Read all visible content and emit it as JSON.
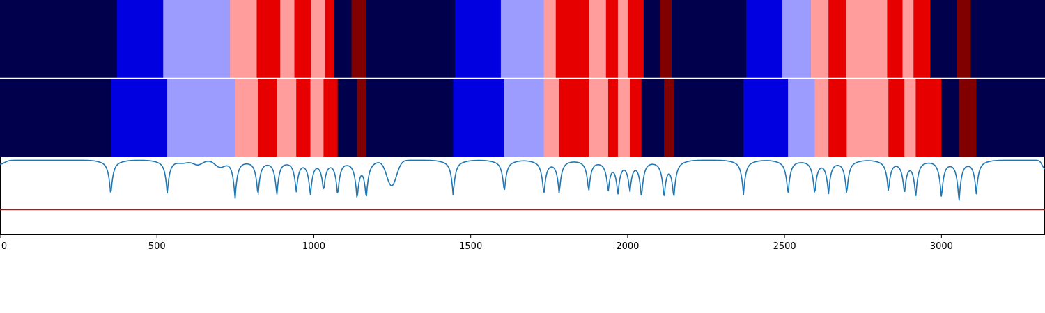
{
  "chart_data": {
    "type": "heatmap",
    "x_range": [
      0,
      3330
    ],
    "x_ticks": [
      {
        "value": 0,
        "label": "0"
      },
      {
        "value": 500,
        "label": "500"
      },
      {
        "value": 1000,
        "label": "1000"
      },
      {
        "value": 1500,
        "label": "1500"
      },
      {
        "value": 2000,
        "label": "2000"
      },
      {
        "value": 2500,
        "label": "2500"
      },
      {
        "value": 3000,
        "label": "3000"
      }
    ],
    "palette": {
      "0": "#00004c",
      "1": "#0000e0",
      "2": "#9c9cff",
      "3": "#ff9c9c",
      "4": "#e60000",
      "5": "#800000"
    },
    "rows": [
      {
        "segments": [
          [
            0,
            373,
            0
          ],
          [
            373,
            520,
            1
          ],
          [
            520,
            733,
            2
          ],
          [
            733,
            818,
            3
          ],
          [
            818,
            893,
            4
          ],
          [
            893,
            938,
            3
          ],
          [
            938,
            991,
            4
          ],
          [
            991,
            1036,
            3
          ],
          [
            1036,
            1064,
            4
          ],
          [
            1064,
            1120,
            0
          ],
          [
            1120,
            1166,
            5
          ],
          [
            1166,
            1450,
            0
          ],
          [
            1450,
            1596,
            1
          ],
          [
            1596,
            1733,
            2
          ],
          [
            1733,
            1771,
            3
          ],
          [
            1771,
            1878,
            4
          ],
          [
            1878,
            1931,
            3
          ],
          [
            1931,
            1969,
            4
          ],
          [
            1969,
            2000,
            3
          ],
          [
            2000,
            2051,
            4
          ],
          [
            2051,
            2102,
            0
          ],
          [
            2102,
            2140,
            5
          ],
          [
            2140,
            2378,
            0
          ],
          [
            2378,
            2493,
            1
          ],
          [
            2493,
            2584,
            2
          ],
          [
            2584,
            2640,
            3
          ],
          [
            2640,
            2696,
            4
          ],
          [
            2696,
            2827,
            3
          ],
          [
            2827,
            2876,
            4
          ],
          [
            2876,
            2911,
            3
          ],
          [
            2911,
            2964,
            4
          ],
          [
            2964,
            3049,
            0
          ],
          [
            3049,
            3093,
            5
          ],
          [
            3093,
            3330,
            0
          ]
        ]
      },
      {
        "segments": [
          [
            0,
            353,
            0
          ],
          [
            353,
            533,
            1
          ],
          [
            533,
            749,
            2
          ],
          [
            749,
            822,
            3
          ],
          [
            822,
            882,
            4
          ],
          [
            882,
            944,
            3
          ],
          [
            944,
            989,
            4
          ],
          [
            989,
            1031,
            3
          ],
          [
            1031,
            1076,
            4
          ],
          [
            1076,
            1138,
            0
          ],
          [
            1138,
            1167,
            5
          ],
          [
            1167,
            1444,
            0
          ],
          [
            1444,
            1607,
            1
          ],
          [
            1607,
            1733,
            2
          ],
          [
            1733,
            1782,
            3
          ],
          [
            1782,
            1876,
            4
          ],
          [
            1876,
            1938,
            3
          ],
          [
            1938,
            1969,
            4
          ],
          [
            1969,
            2007,
            3
          ],
          [
            2007,
            2044,
            4
          ],
          [
            2044,
            2116,
            0
          ],
          [
            2116,
            2147,
            5
          ],
          [
            2147,
            2369,
            0
          ],
          [
            2369,
            2511,
            1
          ],
          [
            2511,
            2596,
            2
          ],
          [
            2596,
            2640,
            3
          ],
          [
            2640,
            2698,
            4
          ],
          [
            2698,
            2831,
            3
          ],
          [
            2831,
            2882,
            4
          ],
          [
            2882,
            2918,
            3
          ],
          [
            2918,
            3000,
            4
          ],
          [
            3000,
            3056,
            0
          ],
          [
            3056,
            3111,
            5
          ],
          [
            3111,
            3330,
            0
          ]
        ]
      }
    ],
    "line_panel": {
      "y_range": [
        0,
        1
      ],
      "threshold": 0.32,
      "threshold_color": "#e60000",
      "line_color": "#1f77b4",
      "baseline": 0.96,
      "dips": [
        [
          353,
          0.49
        ],
        [
          533,
          0.52
        ],
        [
          749,
          0.45
        ],
        [
          822,
          0.49
        ],
        [
          882,
          0.5
        ],
        [
          944,
          0.55
        ],
        [
          989,
          0.51
        ],
        [
          1031,
          0.57
        ],
        [
          1076,
          0.5
        ],
        [
          1138,
          0.47
        ],
        [
          1167,
          0.48
        ],
        [
          1444,
          0.5
        ],
        [
          1607,
          0.53
        ],
        [
          1733,
          0.5
        ],
        [
          1782,
          0.52
        ],
        [
          1876,
          0.54
        ],
        [
          1938,
          0.57
        ],
        [
          1969,
          0.54
        ],
        [
          2007,
          0.57
        ],
        [
          2044,
          0.48
        ],
        [
          2116,
          0.48
        ],
        [
          2147,
          0.48
        ],
        [
          2369,
          0.51
        ],
        [
          2511,
          0.5
        ],
        [
          2596,
          0.51
        ],
        [
          2640,
          0.53
        ],
        [
          2698,
          0.51
        ],
        [
          2831,
          0.55
        ],
        [
          2882,
          0.54
        ],
        [
          2918,
          0.49
        ],
        [
          3000,
          0.46
        ],
        [
          3056,
          0.42
        ],
        [
          3111,
          0.52
        ]
      ],
      "bumps": [
        [
          585,
          0.93
        ],
        [
          630,
          0.9
        ],
        [
          700,
          0.88
        ],
        [
          1248,
          0.63
        ],
        [
          3330,
          0.85
        ]
      ]
    }
  }
}
